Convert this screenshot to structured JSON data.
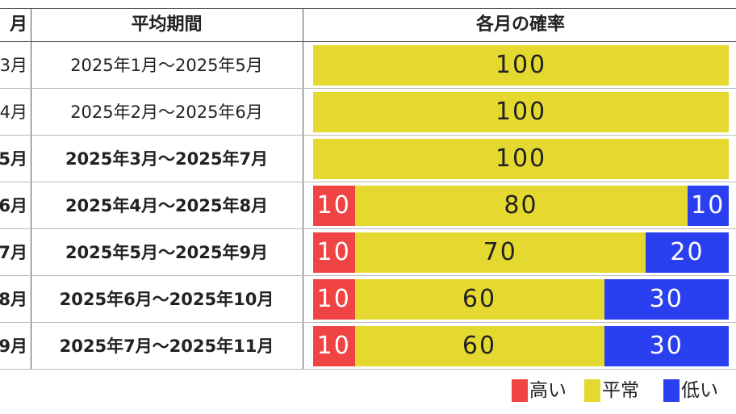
{
  "table": {
    "headers": [
      "月",
      "平均期間",
      "各月の確率"
    ],
    "rows": [
      {
        "month": "3月",
        "period": "2025年1月～2025年5月",
        "bold": false,
        "values": [
          null,
          100,
          null
        ]
      },
      {
        "month": "4月",
        "period": "2025年2月～2025年6月",
        "bold": false,
        "values": [
          null,
          100,
          null
        ]
      },
      {
        "month": "5月",
        "period": "2025年3月～2025年7月",
        "bold": true,
        "values": [
          null,
          100,
          null
        ]
      },
      {
        "month": "6月",
        "period": "2025年4月～2025年8月",
        "bold": true,
        "values": [
          10,
          80,
          10
        ]
      },
      {
        "month": "7月",
        "period": "2025年5月～2025年9月",
        "bold": true,
        "values": [
          10,
          70,
          20
        ]
      },
      {
        "month": "8月",
        "period": "2025年6月～2025年10月",
        "bold": true,
        "values": [
          10,
          60,
          30
        ]
      },
      {
        "month": "9月",
        "period": "2025年7月～2025年11月",
        "bold": true,
        "values": [
          10,
          60,
          30
        ]
      }
    ],
    "scale": [
      0,
      100
    ]
  },
  "legend": [
    {
      "name": "高い",
      "color": "#f04444"
    },
    {
      "name": "平常",
      "color": "#e5d92f"
    },
    {
      "name": "低い",
      "color": "#2a3ff0"
    }
  ]
}
